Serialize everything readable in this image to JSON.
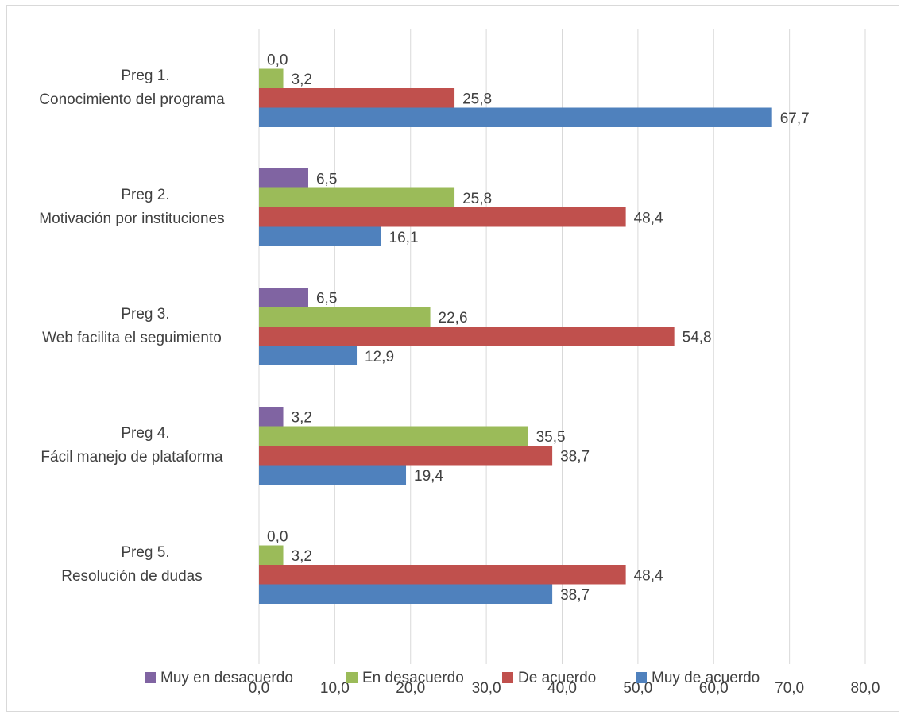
{
  "chart_data": {
    "type": "bar",
    "orientation": "horizontal",
    "categories": [
      [
        "Preg 1.",
        "Conocimiento del programa"
      ],
      [
        "Preg 2.",
        "Motivación por instituciones"
      ],
      [
        "Preg 3.",
        "Web facilita el seguimiento"
      ],
      [
        "Preg 4.",
        "Fácil manejo de plataforma"
      ],
      [
        "Preg 5.",
        "Resolución de dudas"
      ]
    ],
    "series": [
      {
        "name": "Muy en desacuerdo",
        "color": "#8064a2",
        "values": [
          0.0,
          6.5,
          6.5,
          3.2,
          0.0
        ],
        "labels": [
          "0,0",
          "6,5",
          "6,5",
          "3,2",
          "0,0"
        ]
      },
      {
        "name": "En desacuerdo",
        "color": "#9bbb59",
        "values": [
          3.2,
          25.8,
          22.6,
          35.5,
          3.2
        ],
        "labels": [
          "3,2",
          "25,8",
          "22,6",
          "35,5",
          "3,2"
        ]
      },
      {
        "name": "De acuerdo",
        "color": "#c0504d",
        "values": [
          25.8,
          48.4,
          54.8,
          38.7,
          48.4
        ],
        "labels": [
          "25,8",
          "48,4",
          "54,8",
          "38,7",
          "48,4"
        ]
      },
      {
        "name": "Muy de acuerdo",
        "color": "#4f81bd",
        "values": [
          67.7,
          16.1,
          12.9,
          19.4,
          38.7
        ],
        "labels": [
          "67,7",
          "16,1",
          "12,9",
          "19,4",
          "38,7"
        ]
      }
    ],
    "xlim": [
      0,
      80
    ],
    "xticks": [
      0,
      10,
      20,
      30,
      40,
      50,
      60,
      70,
      80
    ],
    "xtick_labels": [
      "0,0",
      "10,0",
      "20,0",
      "30,0",
      "40,0",
      "50,0",
      "60,0",
      "70,0",
      "80,0"
    ],
    "grid": "vertical",
    "legend": "bottom",
    "title": "",
    "xlabel": "",
    "ylabel": ""
  }
}
